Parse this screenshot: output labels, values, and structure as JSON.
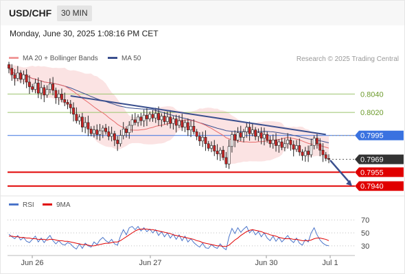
{
  "header": {
    "symbol": "USD/CHF",
    "timeframe": "30 MIN",
    "timestamp": "Monday, June 30, 2025 1:08:16 PM CET"
  },
  "legend": {
    "ma20": "MA 20 + Bollinger Bands",
    "ma50": "MA 50",
    "copyright": "Research © 2025 Trading Central",
    "rsi": "RSI",
    "rsi_ma": "9MA"
  },
  "colors": {
    "candle_up": "#ffffff",
    "candle_down": "#cc2222",
    "ma20": "#e86a6a",
    "bollinger": "#f7cccc",
    "ma50": "#3a4f8e",
    "trendline": "#3a4f8e",
    "resistance": "#9ac46a",
    "pivot": "#3a72e0",
    "support": "#e00000",
    "last": "#333333",
    "rsi": "#4a74c9",
    "rsi_ma": "#e00000"
  },
  "chart_data": {
    "type": "candlestick",
    "x_ticks": [
      "Jun 26",
      "Jun 27",
      "Jun 30",
      "Jul 1"
    ],
    "ylim": [
      0.793,
      0.807
    ],
    "candle_interval": "30 min",
    "closes": [
      0.8068,
      0.8061,
      0.8057,
      0.8063,
      0.8056,
      0.8061,
      0.8053,
      0.8048,
      0.8045,
      0.8052,
      0.8041,
      0.8047,
      0.8039,
      0.8045,
      0.8051,
      0.8044,
      0.8036,
      0.804,
      0.8034,
      0.8031,
      0.8029,
      0.8025,
      0.8018,
      0.8011,
      0.8015,
      0.8004,
      0.8009,
      0.8002,
      0.7997,
      0.8001,
      0.7996,
      0.8,
      0.8003,
      0.7999,
      0.7994,
      0.7997,
      0.799,
      0.7986,
      0.7995,
      0.8002,
      0.7998,
      0.8006,
      0.8012,
      0.8009,
      0.8015,
      0.8011,
      0.8017,
      0.8013,
      0.8018,
      0.8014,
      0.8019,
      0.8012,
      0.8016,
      0.801,
      0.8015,
      0.8008,
      0.8013,
      0.8006,
      0.8011,
      0.8004,
      0.8009,
      0.8001,
      0.8005,
      0.7999,
      0.7994,
      0.7989,
      0.7993,
      0.7986,
      0.7981,
      0.7984,
      0.7978,
      0.7975,
      0.7979,
      0.7971,
      0.7964,
      0.7983,
      0.7996,
      0.799,
      0.7998,
      0.7993,
      0.7999,
      0.8004,
      0.7997,
      0.8001,
      0.7994,
      0.7998,
      0.7992,
      0.7996,
      0.799,
      0.7986,
      0.799,
      0.7984,
      0.7988,
      0.7982,
      0.7986,
      0.799,
      0.7985,
      0.798,
      0.7984,
      0.7977,
      0.7973,
      0.7978,
      0.7974,
      0.7984,
      0.7992,
      0.7986,
      0.7979,
      0.7974,
      0.797,
      0.7969
    ],
    "levels": [
      {
        "label": "0.8040",
        "value": 0.804,
        "kind": "resistance"
      },
      {
        "label": "0.8020",
        "value": 0.802,
        "kind": "resistance"
      },
      {
        "label": "0.7995",
        "value": 0.7995,
        "kind": "pivot"
      },
      {
        "label": "0.7969",
        "value": 0.7969,
        "kind": "last"
      },
      {
        "label": "0.7955",
        "value": 0.7955,
        "kind": "support"
      },
      {
        "label": "0.7940",
        "value": 0.794,
        "kind": "support"
      }
    ],
    "rsi": {
      "ticks": [
        "70",
        "50",
        "30"
      ],
      "ylim": [
        15,
        85
      ],
      "values": [
        48,
        44,
        41,
        46,
        39,
        43,
        37,
        35,
        40,
        45,
        36,
        42,
        35,
        41,
        46,
        38,
        33,
        38,
        33,
        31,
        35,
        33,
        28,
        25,
        33,
        26,
        34,
        30,
        28,
        36,
        32,
        39,
        43,
        38,
        35,
        40,
        33,
        31,
        45,
        55,
        47,
        58,
        60,
        55,
        60,
        53,
        58,
        52,
        56,
        50,
        55,
        46,
        52,
        44,
        50,
        42,
        48,
        40,
        47,
        38,
        45,
        36,
        41,
        35,
        31,
        28,
        34,
        27,
        26,
        32,
        28,
        26,
        33,
        27,
        24,
        44,
        57,
        49,
        58,
        51,
        56,
        60,
        50,
        55,
        47,
        52,
        44,
        50,
        42,
        38,
        45,
        37,
        43,
        36,
        41,
        46,
        39,
        35,
        42,
        34,
        31,
        40,
        36,
        50,
        58,
        47,
        39,
        34,
        31,
        30
      ],
      "ma9": [
        45,
        45,
        44,
        44,
        43,
        43,
        42,
        42,
        41,
        41,
        40,
        40,
        40,
        39,
        40,
        40,
        39,
        38,
        38,
        37,
        37,
        36,
        35,
        34,
        33,
        32,
        32,
        31,
        30,
        30,
        31,
        32,
        33,
        34,
        34,
        35,
        36,
        36,
        38,
        41,
        44,
        47,
        50,
        53,
        55,
        56,
        56,
        56,
        55,
        55,
        54,
        53,
        52,
        51,
        50,
        49,
        47,
        46,
        45,
        44,
        43,
        42,
        41,
        40,
        38,
        37,
        35,
        34,
        33,
        32,
        31,
        30,
        30,
        29,
        29,
        31,
        35,
        39,
        42,
        46,
        49,
        52,
        54,
        55,
        54,
        53,
        52,
        50,
        49,
        47,
        46,
        45,
        43,
        42,
        41,
        41,
        41,
        40,
        40,
        39,
        38,
        38,
        38,
        39,
        41,
        42,
        42,
        41,
        40,
        38
      ]
    }
  }
}
